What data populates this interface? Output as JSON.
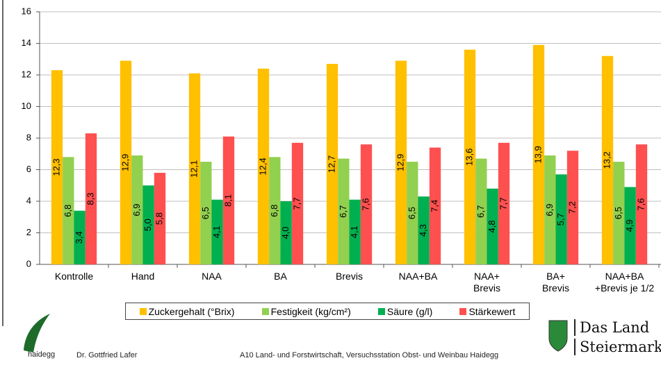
{
  "chart_data": {
    "type": "bar",
    "categories": [
      "Kontrolle",
      "Hand",
      "NAA",
      "BA",
      "Brevis",
      "NAA+BA",
      "NAA+\nBrevis",
      "BA+\nBrevis",
      "NAA+BA\n+Brevis je 1/2"
    ],
    "series": [
      {
        "name": "Zuckergehalt (°Brix)",
        "color": "#ffc000",
        "values": [
          12.3,
          12.9,
          12.1,
          12.4,
          12.7,
          12.9,
          13.6,
          13.9,
          13.2
        ],
        "value_labels": [
          "12,3",
          "12,9",
          "12,1",
          "12,4",
          "12,7",
          "12,9",
          "13,6",
          "13,9",
          "13,2"
        ]
      },
      {
        "name": "Festigkeit (kg/cm²)",
        "color": "#92d050",
        "values": [
          6.8,
          6.9,
          6.5,
          6.8,
          6.7,
          6.5,
          6.7,
          6.9,
          6.5
        ],
        "value_labels": [
          "6,8",
          "6,9",
          "6,5",
          "6,8",
          "6,7",
          "6,5",
          "6,7",
          "6,9",
          "6,5"
        ]
      },
      {
        "name": "Säure (g/l)",
        "color": "#00b050",
        "values": [
          3.4,
          5.0,
          4.1,
          4.0,
          4.1,
          4.3,
          4.8,
          5.7,
          4.9
        ],
        "value_labels": [
          "3,4",
          "5,0",
          "4,1",
          "4,0",
          "4,1",
          "4,3",
          "4,8",
          "5,7",
          "4,9"
        ]
      },
      {
        "name": "Stärkewert",
        "color": "#ff5050",
        "values": [
          8.3,
          5.8,
          8.1,
          7.7,
          7.6,
          7.4,
          7.7,
          7.2,
          7.6
        ],
        "value_labels": [
          "8,3",
          "5,8",
          "8,1",
          "7,7",
          "7,6",
          "7,4",
          "7,7",
          "7,2",
          "7,6"
        ]
      }
    ],
    "ylim": [
      0,
      16
    ],
    "yticks": [
      0,
      2,
      4,
      6,
      8,
      10,
      12,
      14,
      16
    ],
    "grid": true,
    "legend": "bottom"
  },
  "footer": {
    "brand": "haidegg",
    "author": "Dr. Gottfried Lafer",
    "institution": "A10 Land- und Forstwirtschaft, Versuchsstation Obst- und Weinbau Haidegg",
    "logo_line1": "Das Land",
    "logo_line2": "Steiermark"
  }
}
